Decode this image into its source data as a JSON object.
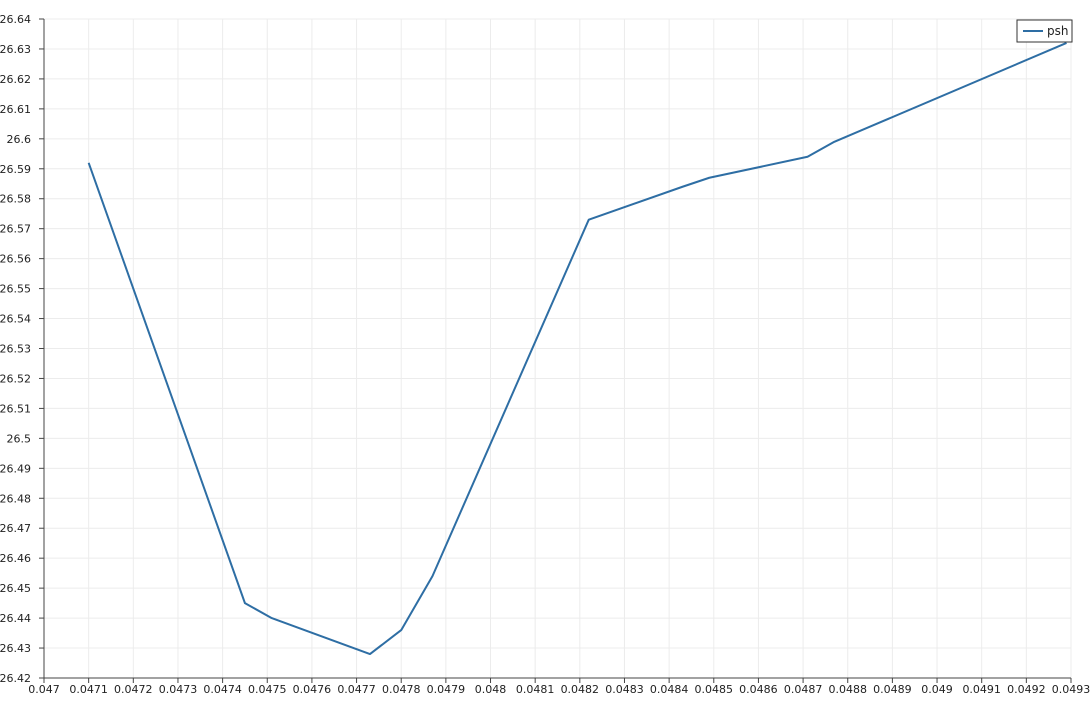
{
  "chart_data": {
    "type": "line",
    "title": "",
    "xlabel": "",
    "ylabel": "",
    "xlim": [
      0.047,
      0.0493
    ],
    "ylim": [
      26.42,
      26.64
    ],
    "x_ticks": [
      0.047,
      0.0471,
      0.0472,
      0.0473,
      0.0474,
      0.0475,
      0.0476,
      0.0477,
      0.0478,
      0.0479,
      0.048,
      0.0481,
      0.0482,
      0.0483,
      0.0484,
      0.0485,
      0.0486,
      0.0487,
      0.0488,
      0.0489,
      0.049,
      0.0491,
      0.0492,
      0.0493
    ],
    "x_tick_labels": [
      "0.047",
      "0.0471",
      "0.0472",
      "0.0473",
      "0.0474",
      "0.0475",
      "0.0476",
      "0.0477",
      "0.0478",
      "0.0479",
      "0.048",
      "0.0481",
      "0.0482",
      "0.0483",
      "0.0484",
      "0.0485",
      "0.0486",
      "0.0487",
      "0.0488",
      "0.0489",
      "0.049",
      "0.0491",
      "0.0492",
      "0.0493"
    ],
    "y_ticks": [
      26.42,
      26.43,
      26.44,
      26.45,
      26.46,
      26.47,
      26.48,
      26.49,
      26.5,
      26.51,
      26.52,
      26.53,
      26.54,
      26.55,
      26.56,
      26.57,
      26.58,
      26.59,
      26.6,
      26.61,
      26.62,
      26.63,
      26.64
    ],
    "y_tick_labels": [
      "26.42",
      "26.43",
      "26.44",
      "26.45",
      "26.46",
      "26.47",
      "26.48",
      "26.49",
      "26.5",
      "26.51",
      "26.52",
      "26.53",
      "26.54",
      "26.55",
      "26.56",
      "26.57",
      "26.58",
      "26.59",
      "26.6",
      "26.61",
      "26.62",
      "26.63",
      "26.64"
    ],
    "grid": true,
    "legend": {
      "position": "top-right"
    },
    "series": [
      {
        "name": "psh",
        "color": "#2e6ea4",
        "x": [
          0.0471,
          0.04745,
          0.04751,
          0.04773,
          0.0478,
          0.04787,
          0.04822,
          0.04843,
          0.04849,
          0.04871,
          0.04877,
          0.04929
        ],
        "y": [
          26.592,
          26.445,
          26.44,
          26.428,
          26.436,
          26.454,
          26.573,
          26.584,
          26.587,
          26.594,
          26.599,
          26.632
        ]
      }
    ]
  }
}
